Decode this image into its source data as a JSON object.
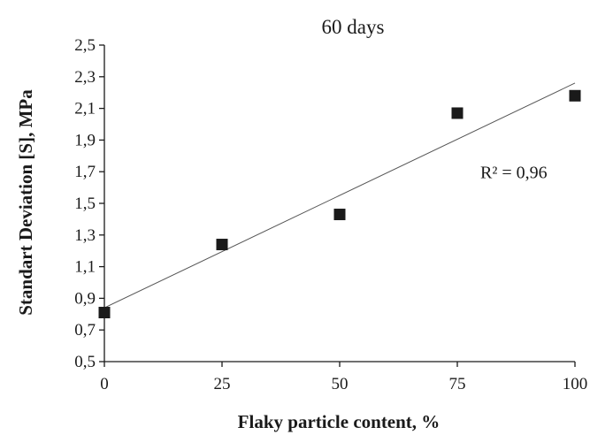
{
  "chart_data": {
    "type": "scatter",
    "title": "60 days",
    "xlabel": "Flaky particle content, %",
    "ylabel": "Standart Deviation [S], MPa",
    "xlim": [
      0,
      100
    ],
    "ylim": [
      0.5,
      2.5
    ],
    "x_ticks": [
      0,
      25,
      50,
      75,
      100
    ],
    "x_tick_labels": [
      "0",
      "25",
      "50",
      "75",
      "100"
    ],
    "y_ticks": [
      0.5,
      0.7,
      0.9,
      1.1,
      1.3,
      1.5,
      1.7,
      1.9,
      2.1,
      2.3,
      2.5
    ],
    "y_tick_labels": [
      "0,5",
      "0,7",
      "0,9",
      "1,1",
      "1,3",
      "1,5",
      "1,7",
      "1,9",
      "2,1",
      "2,3",
      "2,5"
    ],
    "grid": false,
    "series": [
      {
        "x": [
          0,
          25,
          50,
          75,
          100
        ],
        "y": [
          0.81,
          1.24,
          1.43,
          2.07,
          2.18
        ],
        "marker": "square",
        "color": "#1a1a1a"
      }
    ],
    "trendline": {
      "type": "linear",
      "x": [
        0,
        100
      ],
      "y": [
        0.84,
        2.26
      ],
      "color": "#555555"
    },
    "annotations": [
      {
        "text": "R² = 0,96",
        "x": 87,
        "y": 1.66
      }
    ]
  }
}
